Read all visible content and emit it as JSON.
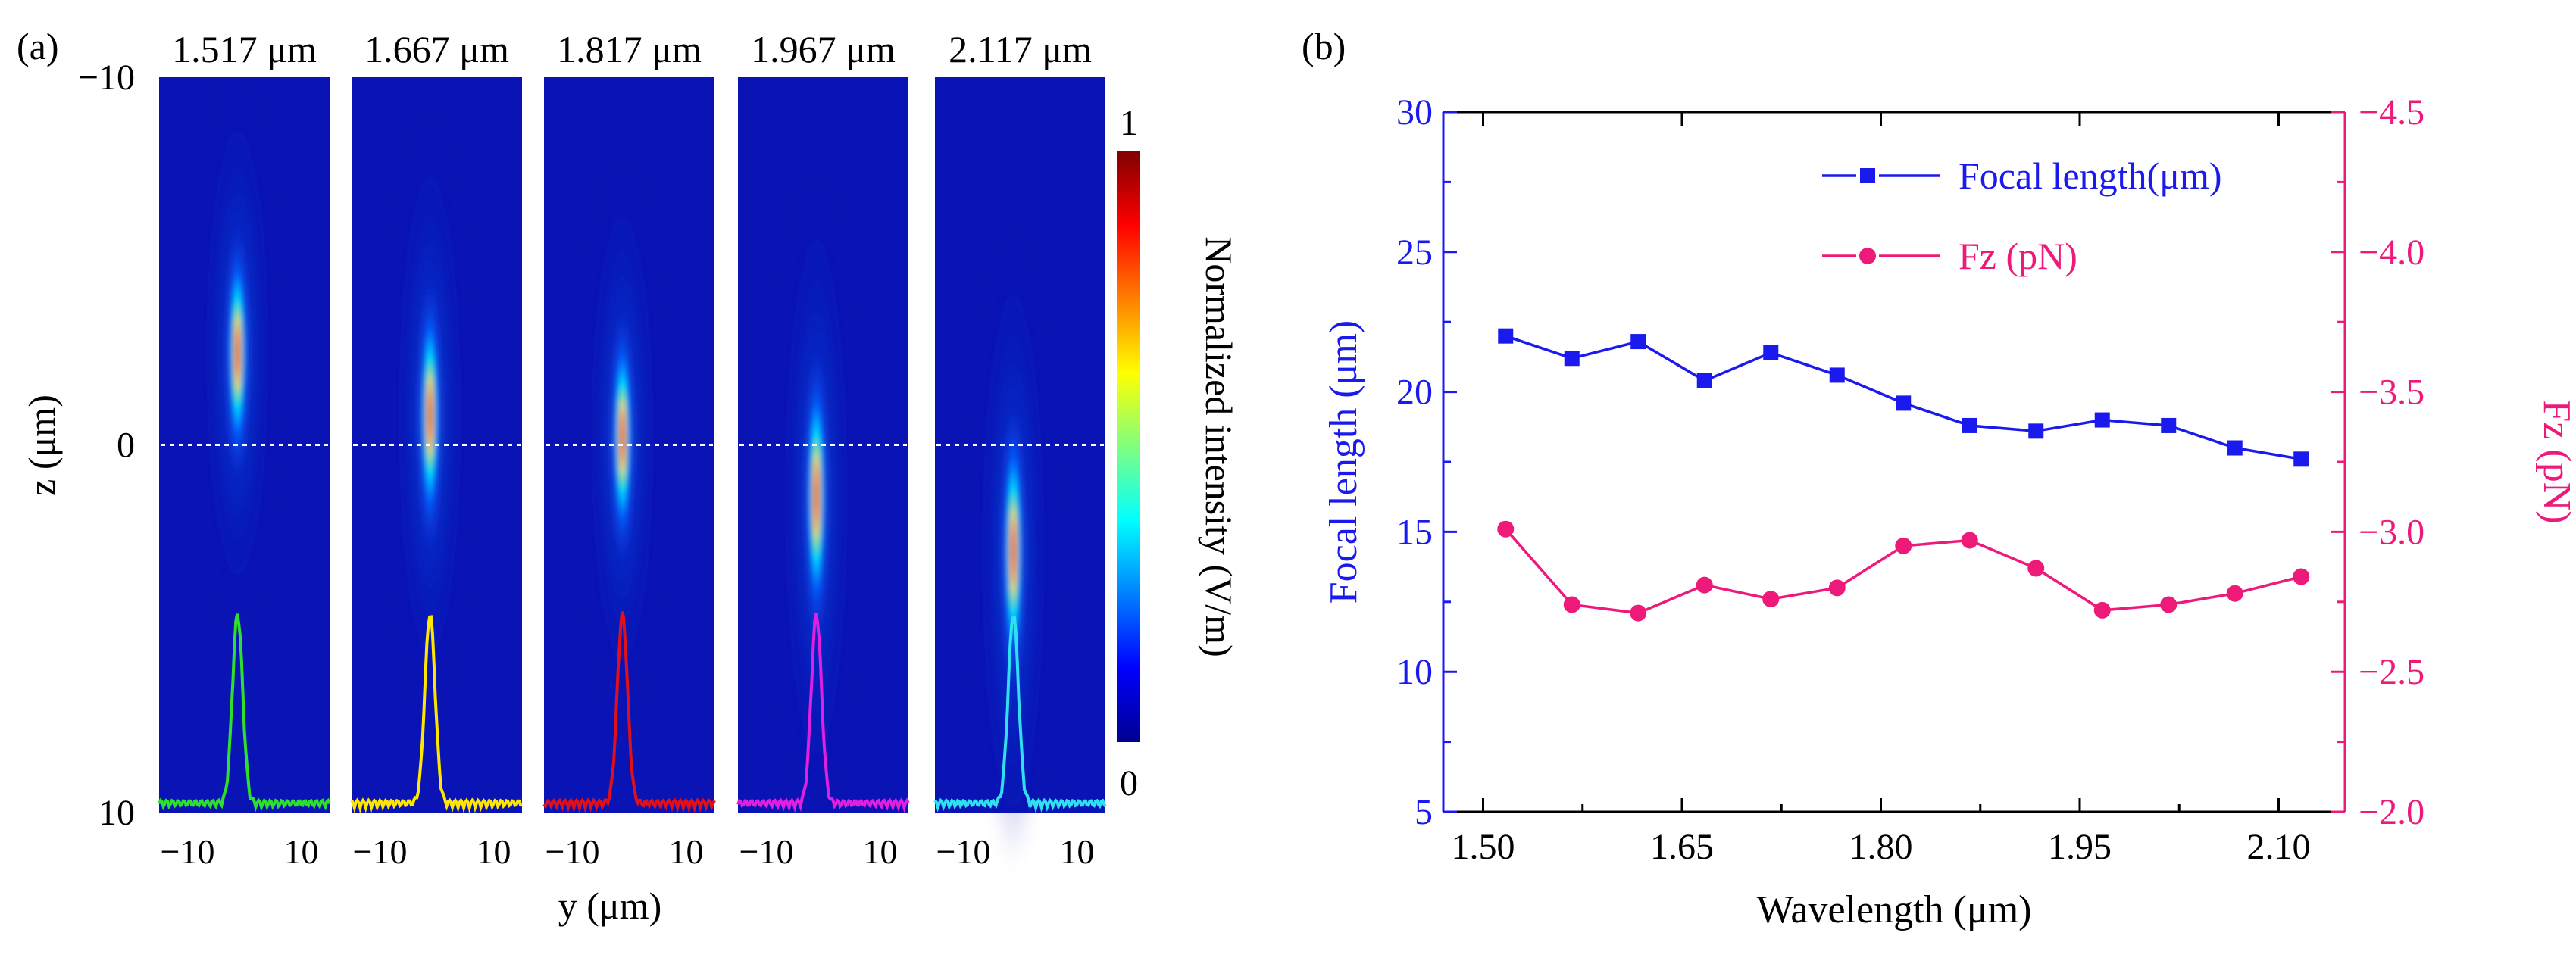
{
  "panel_a": {
    "label": "(a)",
    "wavelength_titles": [
      "1.517 μm",
      "1.667 μm",
      "1.817 μm",
      "1.967 μm",
      "2.117 μm"
    ],
    "z_label": "z (μm)",
    "y_label": "y (μm)",
    "z_ticks": [
      "−10",
      "0",
      "10"
    ],
    "y_ticks": [
      "−10",
      "10"
    ],
    "colorbar_label": "Normalized intensity (V/m)",
    "colorbar_ticks": [
      "1",
      "0"
    ],
    "profile_colors": [
      "#2ee02e",
      "#ffe600",
      "#e0101a",
      "#e020e0",
      "#30e0f0"
    ],
    "focus_z": [
      -2.5,
      -0.8,
      -0.2,
      1.4,
      2.9
    ],
    "focus_length": [
      6.5,
      7.0,
      6.5,
      7.5,
      7.5
    ]
  },
  "panel_b": {
    "label": "(b)"
  },
  "chart_data": {
    "type": "line",
    "xlabel": "Wavelength (μm)",
    "ylabel": "Focal length (μm)",
    "y2label": "Fz (pN)",
    "xlim": [
      1.47,
      2.15
    ],
    "ylim": [
      5,
      30
    ],
    "y2lim": [
      -2.0,
      -4.5
    ],
    "x_ticks": [
      "1.50",
      "1.65",
      "1.80",
      "1.95",
      "2.10"
    ],
    "y_ticks": [
      "5",
      "10",
      "15",
      "20",
      "25",
      "30"
    ],
    "y2_ticks": [
      "−2.0",
      "−2.5",
      "−3.0",
      "−3.5",
      "−4.0",
      "−4.5"
    ],
    "legend_position": "top-right",
    "x": [
      1.517,
      1.567,
      1.617,
      1.667,
      1.717,
      1.767,
      1.817,
      1.867,
      1.917,
      1.967,
      2.017,
      2.067,
      2.117
    ],
    "series": [
      {
        "name": "Focal length(μm)",
        "axis": "left",
        "color": "#1a1aee",
        "marker": "square",
        "values": [
          22.0,
          21.2,
          21.8,
          20.4,
          21.4,
          20.6,
          19.6,
          18.8,
          18.6,
          19.0,
          18.8,
          18.0,
          17.6
        ]
      },
      {
        "name": "Fz (pN)",
        "axis": "right",
        "color": "#ee1a7a",
        "marker": "circle",
        "values": [
          -3.01,
          -2.74,
          -2.71,
          -2.81,
          -2.76,
          -2.8,
          -2.95,
          -2.97,
          -2.87,
          -2.72,
          -2.74,
          -2.78,
          -2.84
        ]
      }
    ]
  }
}
